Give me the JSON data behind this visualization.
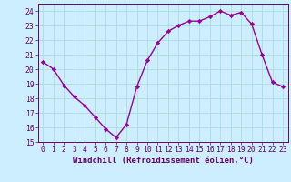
{
  "x": [
    0,
    1,
    2,
    3,
    4,
    5,
    6,
    7,
    8,
    9,
    10,
    11,
    12,
    13,
    14,
    15,
    16,
    17,
    18,
    19,
    20,
    21,
    22,
    23
  ],
  "y": [
    20.5,
    20.0,
    18.9,
    18.1,
    17.5,
    16.7,
    15.9,
    15.3,
    16.2,
    18.8,
    20.6,
    21.8,
    22.6,
    23.0,
    23.3,
    23.3,
    23.6,
    24.0,
    23.7,
    23.9,
    23.1,
    21.0,
    19.1,
    18.8
  ],
  "line_color": "#990099",
  "marker": "D",
  "marker_size": 2.2,
  "line_width": 1.0,
  "bg_color": "#cceeff",
  "grid_color": "#aadddd",
  "xlabel": "Windchill (Refroidissement éolien,°C)",
  "xlabel_color": "#660066",
  "xlabel_fontsize": 6.5,
  "tick_color": "#660066",
  "tick_fontsize": 5.8,
  "xlim": [
    -0.5,
    23.5
  ],
  "ylim": [
    15,
    24.5
  ],
  "yticks": [
    15,
    16,
    17,
    18,
    19,
    20,
    21,
    22,
    23,
    24
  ],
  "xticks": [
    0,
    1,
    2,
    3,
    4,
    5,
    6,
    7,
    8,
    9,
    10,
    11,
    12,
    13,
    14,
    15,
    16,
    17,
    18,
    19,
    20,
    21,
    22,
    23
  ]
}
